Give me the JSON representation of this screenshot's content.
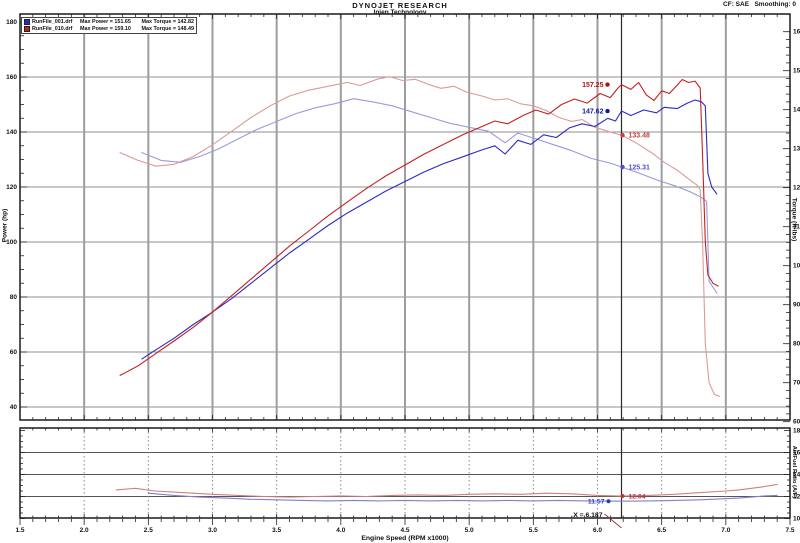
{
  "header": {
    "title": "DYNOJET RESEARCH",
    "subtitle": "Injen Technology",
    "correction": "CF: SAE   Smoothing: 0"
  },
  "legend": {
    "rows": [
      {
        "file": "RunFile_001.drf",
        "power": "Max Power = 151.65",
        "torque": "Max Torque = 142.82",
        "color": "#2b2bc4"
      },
      {
        "file": "RunFile_010.drf",
        "power": "Max Power = 159.10",
        "torque": "Max Torque = 148.49",
        "color": "#c42020"
      }
    ]
  },
  "cursor": {
    "x": 6.187,
    "label": "X = 6.187"
  },
  "chart_data": [
    {
      "type": "line",
      "name": "power-torque-chart",
      "x": {
        "label": "Engine Speed (RPM x1000)",
        "min": 1.5,
        "max": 7.5,
        "grid_step": 0.5,
        "tick_labels": [
          "1.5",
          "2.0",
          "2.5",
          "3.0",
          "3.5",
          "4.0",
          "4.5",
          "5.0",
          "5.5",
          "6.0",
          "6.5",
          "7.0",
          "7.5"
        ]
      },
      "y_left": {
        "label": "Power (hp)",
        "min": 40,
        "max": 180,
        "ticks": [
          40,
          60,
          80,
          100,
          120,
          140,
          160,
          180
        ],
        "minor_step": 5
      },
      "y_right": {
        "label": "Torque (ft-lbs)",
        "min": 60,
        "max": 160,
        "ticks": [
          60,
          70,
          80,
          90,
          100,
          110,
          120,
          130,
          140,
          150,
          160
        ],
        "minor_step": 2
      },
      "grid": true,
      "legend_position": "top-left",
      "series": [
        {
          "name": "torque_run1",
          "axis": "right",
          "color": "#9a9ade",
          "points": [
            [
              2.45,
              129
            ],
            [
              2.6,
              127
            ],
            [
              2.75,
              126.5
            ],
            [
              2.9,
              128
            ],
            [
              3.05,
              130
            ],
            [
              3.2,
              132.5
            ],
            [
              3.35,
              135
            ],
            [
              3.5,
              137
            ],
            [
              3.65,
              139
            ],
            [
              3.8,
              140.5
            ],
            [
              3.95,
              141.5
            ],
            [
              4.1,
              142.82
            ],
            [
              4.25,
              142
            ],
            [
              4.4,
              141
            ],
            [
              4.55,
              139.5
            ],
            [
              4.7,
              138
            ],
            [
              4.85,
              136.5
            ],
            [
              5.0,
              135.5
            ],
            [
              5.15,
              134.5
            ],
            [
              5.28,
              131.5
            ],
            [
              5.38,
              134
            ],
            [
              5.52,
              132.5
            ],
            [
              5.66,
              131
            ],
            [
              5.8,
              129.5
            ],
            [
              5.95,
              127.5
            ],
            [
              6.1,
              126.3
            ],
            [
              6.187,
              125.31
            ],
            [
              6.32,
              123.8
            ],
            [
              6.46,
              122
            ],
            [
              6.6,
              120.5
            ],
            [
              6.72,
              119
            ],
            [
              6.81,
              117.5
            ],
            [
              6.85,
              116.5
            ],
            [
              6.87,
              96
            ],
            [
              6.93,
              93
            ]
          ]
        },
        {
          "name": "torque_run2",
          "axis": "right",
          "color": "#dc9a9a",
          "points": [
            [
              2.28,
              129
            ],
            [
              2.42,
              127
            ],
            [
              2.56,
              125.5
            ],
            [
              2.7,
              126
            ],
            [
              2.85,
              128
            ],
            [
              3.0,
              131
            ],
            [
              3.15,
              134.5
            ],
            [
              3.3,
              138
            ],
            [
              3.45,
              141
            ],
            [
              3.6,
              143.5
            ],
            [
              3.75,
              145
            ],
            [
              3.9,
              146
            ],
            [
              4.05,
              147
            ],
            [
              4.15,
              146.2
            ],
            [
              4.28,
              147.8
            ],
            [
              4.38,
              148.49
            ],
            [
              4.48,
              147.5
            ],
            [
              4.58,
              147.8
            ],
            [
              4.68,
              146.5
            ],
            [
              4.78,
              145.5
            ],
            [
              4.88,
              146
            ],
            [
              4.98,
              144.5
            ],
            [
              5.1,
              143.5
            ],
            [
              5.2,
              142.5
            ],
            [
              5.3,
              142.8
            ],
            [
              5.4,
              141.5
            ],
            [
              5.5,
              141
            ],
            [
              5.6,
              139.8
            ],
            [
              5.7,
              138
            ],
            [
              5.8,
              137
            ],
            [
              5.88,
              137.5
            ],
            [
              5.98,
              135.5
            ],
            [
              6.08,
              134.5
            ],
            [
              6.15,
              133.8
            ],
            [
              6.187,
              133.48
            ],
            [
              6.3,
              131.5
            ],
            [
              6.42,
              129
            ],
            [
              6.52,
              126.5
            ],
            [
              6.62,
              124.5
            ],
            [
              6.72,
              122
            ],
            [
              6.78,
              120.5
            ],
            [
              6.8,
              119.5
            ],
            [
              6.82,
              105
            ],
            [
              6.84,
              80
            ],
            [
              6.87,
              70
            ],
            [
              6.91,
              67
            ],
            [
              6.95,
              66.5
            ]
          ]
        },
        {
          "name": "power_run1",
          "axis": "left",
          "color": "#2b2bc4",
          "points": [
            [
              2.45,
              57.5
            ],
            [
              2.55,
              60.5
            ],
            [
              2.7,
              65
            ],
            [
              2.85,
              70
            ],
            [
              3.0,
              74.5
            ],
            [
              3.15,
              79.5
            ],
            [
              3.3,
              85
            ],
            [
              3.45,
              90.5
            ],
            [
              3.6,
              96
            ],
            [
              3.75,
              101
            ],
            [
              3.9,
              106
            ],
            [
              4.05,
              110.5
            ],
            [
              4.2,
              114.5
            ],
            [
              4.35,
              118.5
            ],
            [
              4.5,
              122
            ],
            [
              4.65,
              125.5
            ],
            [
              4.8,
              128.5
            ],
            [
              4.95,
              131
            ],
            [
              5.1,
              133.5
            ],
            [
              5.2,
              135
            ],
            [
              5.28,
              132
            ],
            [
              5.38,
              137
            ],
            [
              5.48,
              135.5
            ],
            [
              5.58,
              139
            ],
            [
              5.68,
              138
            ],
            [
              5.78,
              141.5
            ],
            [
              5.88,
              143
            ],
            [
              5.98,
              142
            ],
            [
              6.08,
              145
            ],
            [
              6.14,
              144
            ],
            [
              6.187,
              147.62
            ],
            [
              6.26,
              146
            ],
            [
              6.36,
              148
            ],
            [
              6.46,
              147
            ],
            [
              6.52,
              149
            ],
            [
              6.62,
              148.5
            ],
            [
              6.7,
              150.5
            ],
            [
              6.76,
              151.65
            ],
            [
              6.81,
              151
            ],
            [
              6.84,
              149.5
            ],
            [
              6.86,
              125
            ],
            [
              6.89,
              120
            ],
            [
              6.93,
              117.5
            ]
          ]
        },
        {
          "name": "power_run2",
          "axis": "left",
          "color": "#c42020",
          "points": [
            [
              2.28,
              51.5
            ],
            [
              2.42,
              55
            ],
            [
              2.56,
              59.5
            ],
            [
              2.7,
              64
            ],
            [
              2.85,
              69
            ],
            [
              3.0,
              74.5
            ],
            [
              3.15,
              80.5
            ],
            [
              3.3,
              86.5
            ],
            [
              3.45,
              92.5
            ],
            [
              3.6,
              98.5
            ],
            [
              3.75,
              104
            ],
            [
              3.9,
              109.5
            ],
            [
              4.05,
              114.5
            ],
            [
              4.2,
              119.5
            ],
            [
              4.35,
              124
            ],
            [
              4.5,
              128
            ],
            [
              4.65,
              132
            ],
            [
              4.8,
              135.5
            ],
            [
              4.95,
              139
            ],
            [
              5.1,
              142
            ],
            [
              5.2,
              144
            ],
            [
              5.3,
              143
            ],
            [
              5.42,
              146
            ],
            [
              5.52,
              148
            ],
            [
              5.62,
              146.5
            ],
            [
              5.72,
              150
            ],
            [
              5.82,
              152
            ],
            [
              5.92,
              150.5
            ],
            [
              6.02,
              154
            ],
            [
              6.1,
              152.5
            ],
            [
              6.16,
              156
            ],
            [
              6.187,
              157.25
            ],
            [
              6.26,
              155.5
            ],
            [
              6.32,
              158
            ],
            [
              6.38,
              153.5
            ],
            [
              6.44,
              151.5
            ],
            [
              6.5,
              155
            ],
            [
              6.56,
              154
            ],
            [
              6.62,
              157
            ],
            [
              6.66,
              159.1
            ],
            [
              6.71,
              158
            ],
            [
              6.76,
              158.5
            ],
            [
              6.8,
              156
            ],
            [
              6.82,
              130
            ],
            [
              6.84,
              100
            ],
            [
              6.86,
              88
            ],
            [
              6.9,
              85
            ],
            [
              6.94,
              84
            ]
          ]
        }
      ],
      "annotations": [
        {
          "text": "157.25",
          "value": 157.25,
          "axis": "left",
          "rpm": 6.187,
          "color": "#a81616",
          "side": "left"
        },
        {
          "text": "147.62",
          "value": 147.62,
          "axis": "left",
          "rpm": 6.187,
          "color": "#1616a8",
          "side": "left"
        },
        {
          "text": "133.48",
          "value": 133.48,
          "axis": "right",
          "rpm": 6.187,
          "color": "#c84040",
          "side": "right"
        },
        {
          "text": "125.31",
          "value": 125.31,
          "axis": "right",
          "rpm": 6.187,
          "color": "#5050cc",
          "side": "right"
        }
      ]
    },
    {
      "type": "line",
      "name": "air-fuel-chart",
      "x": {
        "min": 1.5,
        "max": 7.5,
        "grid_step": 0.5
      },
      "y_right": {
        "label": "Air/Fuel Ratio (A/F)",
        "min": 10,
        "max": 18,
        "ticks": [
          10,
          12,
          14,
          16,
          18
        ],
        "minor_step": 0.5
      },
      "grid": true,
      "series": [
        {
          "name": "af_run1",
          "axis": "right",
          "color": "#8080cc",
          "points": [
            [
              2.5,
              12.3
            ],
            [
              2.7,
              12.1
            ],
            [
              2.9,
              11.95
            ],
            [
              3.1,
              11.85
            ],
            [
              3.3,
              11.75
            ],
            [
              3.5,
              11.7
            ],
            [
              3.7,
              11.65
            ],
            [
              3.9,
              11.6
            ],
            [
              4.1,
              11.65
            ],
            [
              4.3,
              11.6
            ],
            [
              4.5,
              11.65
            ],
            [
              4.7,
              11.6
            ],
            [
              4.9,
              11.65
            ],
            [
              5.1,
              11.6
            ],
            [
              5.3,
              11.65
            ],
            [
              5.5,
              11.6
            ],
            [
              5.7,
              11.65
            ],
            [
              5.9,
              11.6
            ],
            [
              6.0,
              11.58
            ],
            [
              6.187,
              11.57
            ],
            [
              6.4,
              11.6
            ],
            [
              6.6,
              11.65
            ],
            [
              6.8,
              11.7
            ],
            [
              7.0,
              11.8
            ],
            [
              7.1,
              11.85
            ],
            [
              7.2,
              11.95
            ],
            [
              7.3,
              12.05
            ],
            [
              7.4,
              12.1
            ]
          ]
        },
        {
          "name": "af_run2",
          "axis": "right",
          "color": "#d08080",
          "points": [
            [
              2.25,
              12.6
            ],
            [
              2.4,
              12.75
            ],
            [
              2.55,
              12.5
            ],
            [
              2.7,
              12.4
            ],
            [
              2.85,
              12.3
            ],
            [
              3.0,
              12.2
            ],
            [
              3.2,
              12.1
            ],
            [
              3.4,
              12.0
            ],
            [
              3.6,
              11.95
            ],
            [
              3.8,
              12.0
            ],
            [
              4.0,
              12.05
            ],
            [
              4.2,
              12.0
            ],
            [
              4.4,
              12.1
            ],
            [
              4.6,
              12.15
            ],
            [
              4.8,
              12.1
            ],
            [
              5.0,
              12.2
            ],
            [
              5.2,
              12.25
            ],
            [
              5.4,
              12.2
            ],
            [
              5.6,
              12.3
            ],
            [
              5.8,
              12.25
            ],
            [
              6.0,
              12.1
            ],
            [
              6.187,
              12.04
            ],
            [
              6.4,
              12.1
            ],
            [
              6.6,
              12.2
            ],
            [
              6.8,
              12.35
            ],
            [
              7.0,
              12.5
            ],
            [
              7.1,
              12.6
            ],
            [
              7.2,
              12.75
            ],
            [
              7.3,
              12.9
            ],
            [
              7.4,
              13.1
            ]
          ]
        }
      ],
      "annotations": [
        {
          "text": "12.04",
          "value": 12.04,
          "axis": "right",
          "rpm": 6.187,
          "color": "#c83333",
          "side": "right"
        },
        {
          "text": "11.57",
          "value": 11.57,
          "axis": "right",
          "rpm": 6.187,
          "color": "#3333c8",
          "side": "left"
        }
      ]
    }
  ]
}
